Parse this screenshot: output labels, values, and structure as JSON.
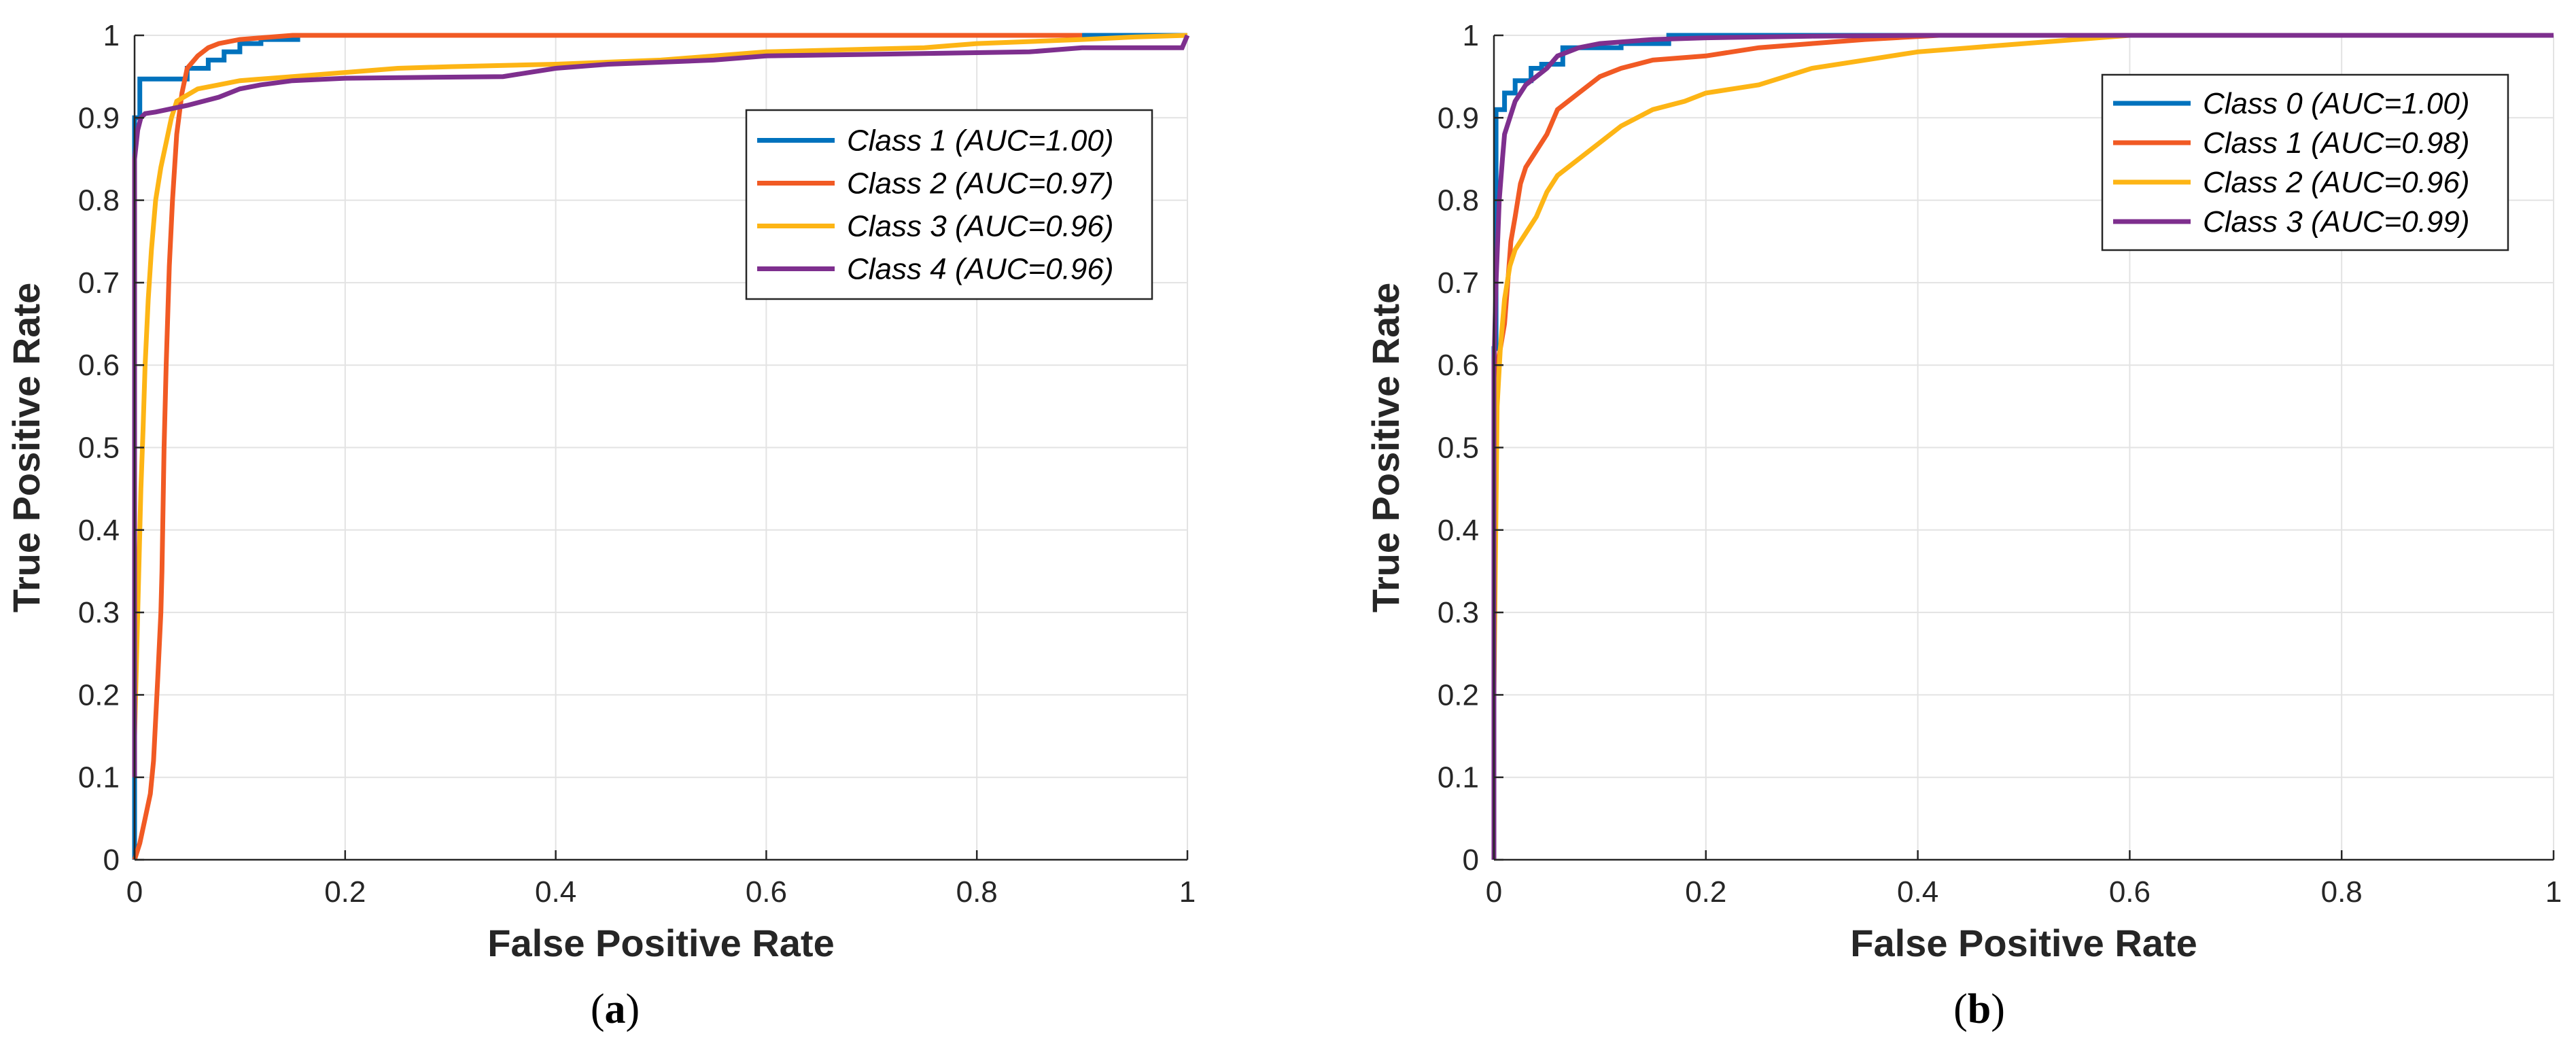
{
  "colors": {
    "blue": "#0072BD",
    "orange": "#F15A24",
    "yellow": "#FDB515",
    "purple": "#7E2F8E"
  },
  "chart_data": [
    {
      "type": "line",
      "caption_letter": "a",
      "xlabel": "False Positive Rate",
      "ylabel": "True Positive Rate",
      "xlim": [
        0,
        1
      ],
      "ylim": [
        0,
        1
      ],
      "grid": true,
      "legend_position": "top-right",
      "xticks": [
        "0",
        "0.2",
        "0.4",
        "0.6",
        "0.8",
        "1"
      ],
      "yticks": [
        "0",
        "0.1",
        "0.2",
        "0.3",
        "0.4",
        "0.5",
        "0.6",
        "0.7",
        "0.8",
        "0.9",
        "1"
      ],
      "series": [
        {
          "name": "Class 1 (AUC=1.00)",
          "color_key": "blue",
          "x": [
            0,
            0,
            0.005,
            0.005,
            0.05,
            0.05,
            0.07,
            0.07,
            0.085,
            0.085,
            0.1,
            0.1,
            0.12,
            0.12,
            0.155,
            0.155,
            0.24,
            1
          ],
          "y": [
            0,
            0.9,
            0.9,
            0.947,
            0.947,
            0.96,
            0.96,
            0.97,
            0.97,
            0.98,
            0.98,
            0.99,
            0.99,
            0.995,
            0.995,
            1.0,
            1.0,
            1.0
          ]
        },
        {
          "name": "Class 2 (AUC=0.97)",
          "color_key": "orange",
          "x": [
            0,
            0.005,
            0.01,
            0.015,
            0.018,
            0.02,
            0.022,
            0.025,
            0.026,
            0.028,
            0.03,
            0.033,
            0.036,
            0.04,
            0.045,
            0.05,
            0.06,
            0.07,
            0.08,
            0.1,
            0.15,
            0.2,
            0.9
          ],
          "y": [
            0,
            0.02,
            0.05,
            0.08,
            0.12,
            0.17,
            0.22,
            0.3,
            0.35,
            0.5,
            0.6,
            0.72,
            0.8,
            0.88,
            0.93,
            0.96,
            0.975,
            0.985,
            0.99,
            0.995,
            1.0,
            1.0,
            1.0
          ]
        },
        {
          "name": "Class 3 (AUC=0.96)",
          "color_key": "yellow",
          "x": [
            0,
            0.002,
            0.004,
            0.006,
            0.008,
            0.01,
            0.013,
            0.016,
            0.02,
            0.025,
            0.03,
            0.035,
            0.04,
            0.06,
            0.08,
            0.1,
            0.15,
            0.2,
            0.25,
            0.3,
            0.4,
            0.5,
            0.6,
            0.75,
            0.8,
            0.9,
            0.95,
            1.0
          ],
          "y": [
            0.15,
            0.25,
            0.35,
            0.45,
            0.52,
            0.6,
            0.68,
            0.74,
            0.8,
            0.84,
            0.87,
            0.9,
            0.92,
            0.935,
            0.94,
            0.945,
            0.95,
            0.955,
            0.96,
            0.962,
            0.965,
            0.97,
            0.98,
            0.985,
            0.99,
            0.995,
            0.998,
            1.0
          ]
        },
        {
          "name": "Class 4 (AUC=0.96)",
          "color_key": "purple",
          "x": [
            0,
            0,
            0.003,
            0.006,
            0.01,
            0.02,
            0.05,
            0.08,
            0.1,
            0.12,
            0.15,
            0.2,
            0.35,
            0.4,
            0.45,
            0.55,
            0.6,
            0.85,
            0.9,
            0.995,
            1.0
          ],
          "y": [
            0.1,
            0.85,
            0.885,
            0.9,
            0.905,
            0.907,
            0.915,
            0.925,
            0.935,
            0.94,
            0.945,
            0.948,
            0.95,
            0.96,
            0.965,
            0.97,
            0.975,
            0.98,
            0.985,
            0.985,
            1.0
          ]
        }
      ]
    },
    {
      "type": "line",
      "caption_letter": "b",
      "xlabel": "False Positive Rate",
      "ylabel": "True Positive Rate",
      "xlim": [
        0,
        1
      ],
      "ylim": [
        0,
        1
      ],
      "grid": true,
      "legend_position": "top-right",
      "xticks": [
        "0",
        "0.2",
        "0.4",
        "0.6",
        "0.8",
        "1"
      ],
      "yticks": [
        "0",
        "0.1",
        "0.2",
        "0.3",
        "0.4",
        "0.5",
        "0.6",
        "0.7",
        "0.8",
        "0.9",
        "1"
      ],
      "series": [
        {
          "name": "Class 0 (AUC=1.00)",
          "color_key": "blue",
          "x": [
            0,
            0,
            0.002,
            0.002,
            0.01,
            0.01,
            0.02,
            0.02,
            0.035,
            0.035,
            0.045,
            0.045,
            0.065,
            0.065,
            0.12,
            0.12,
            0.165,
            0.165,
            1
          ],
          "y": [
            0,
            0.62,
            0.62,
            0.91,
            0.91,
            0.93,
            0.93,
            0.945,
            0.945,
            0.96,
            0.96,
            0.965,
            0.965,
            0.985,
            0.985,
            0.99,
            0.99,
            1.0,
            1.0
          ]
        },
        {
          "name": "Class 1 (AUC=0.98)",
          "color_key": "orange",
          "x": [
            0,
            0.003,
            0.006,
            0.01,
            0.013,
            0.016,
            0.02,
            0.025,
            0.03,
            0.04,
            0.05,
            0.06,
            0.08,
            0.1,
            0.12,
            0.15,
            0.2,
            0.25,
            0.3,
            0.35,
            0.42
          ],
          "y": [
            0.58,
            0.6,
            0.62,
            0.65,
            0.7,
            0.75,
            0.78,
            0.82,
            0.84,
            0.86,
            0.88,
            0.91,
            0.93,
            0.95,
            0.96,
            0.97,
            0.975,
            0.985,
            0.99,
            0.995,
            1.0
          ]
        },
        {
          "name": "Class 2 (AUC=0.96)",
          "color_key": "yellow",
          "x": [
            0,
            0.003,
            0.006,
            0.01,
            0.015,
            0.02,
            0.03,
            0.04,
            0.05,
            0.06,
            0.08,
            0.1,
            0.12,
            0.15,
            0.18,
            0.2,
            0.25,
            0.3,
            0.35,
            0.4,
            0.45,
            0.5,
            0.55,
            0.6,
            1.0
          ],
          "y": [
            0.2,
            0.55,
            0.62,
            0.68,
            0.72,
            0.74,
            0.76,
            0.78,
            0.81,
            0.83,
            0.85,
            0.87,
            0.89,
            0.91,
            0.92,
            0.93,
            0.94,
            0.96,
            0.97,
            0.98,
            0.985,
            0.99,
            0.995,
            1.0,
            1.0
          ]
        },
        {
          "name": "Class 3 (AUC=0.99)",
          "color_key": "purple",
          "x": [
            0,
            0,
            0.002,
            0.005,
            0.008,
            0.01,
            0.015,
            0.02,
            0.03,
            0.04,
            0.05,
            0.06,
            0.08,
            0.1,
            0.15,
            0.2,
            0.3,
            0.4,
            1.0
          ],
          "y": [
            0,
            0.6,
            0.7,
            0.8,
            0.85,
            0.88,
            0.9,
            0.92,
            0.94,
            0.95,
            0.96,
            0.975,
            0.985,
            0.99,
            0.995,
            0.997,
            0.999,
            1.0,
            1.0
          ]
        }
      ]
    }
  ]
}
